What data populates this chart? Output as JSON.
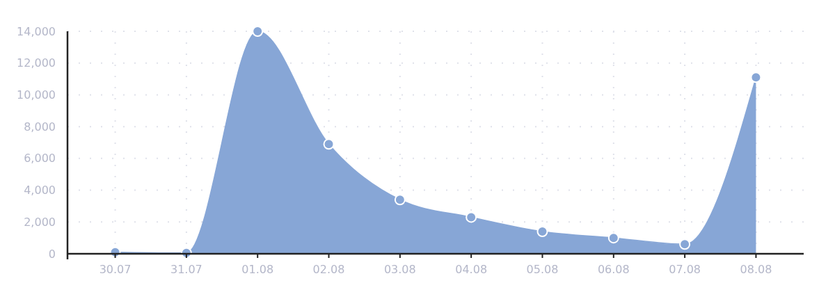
{
  "chart_data": {
    "type": "area",
    "categories": [
      "30.07",
      "31.07",
      "01.08",
      "02.08",
      "03.08",
      "04.08",
      "05.08",
      "06.08",
      "07.08",
      "08.08"
    ],
    "series": [
      {
        "color": "#87a6d6",
        "values": [
          100,
          50,
          14000,
          6900,
          3400,
          2300,
          1400,
          1000,
          600,
          11100
        ]
      }
    ],
    "ylim": [
      0,
      14000
    ],
    "yticks": [
      {
        "value": 0,
        "label": "0"
      },
      {
        "value": 2000,
        "label": "2,000"
      },
      {
        "value": 4000,
        "label": "4,000"
      },
      {
        "value": 6000,
        "label": "6,000"
      },
      {
        "value": 8000,
        "label": "8,000"
      },
      {
        "value": 10000,
        "label": "10,000"
      },
      {
        "value": 12000,
        "label": "12,000"
      },
      {
        "value": 14000,
        "label": "14,000"
      }
    ],
    "grid": true,
    "marker": "circle"
  }
}
